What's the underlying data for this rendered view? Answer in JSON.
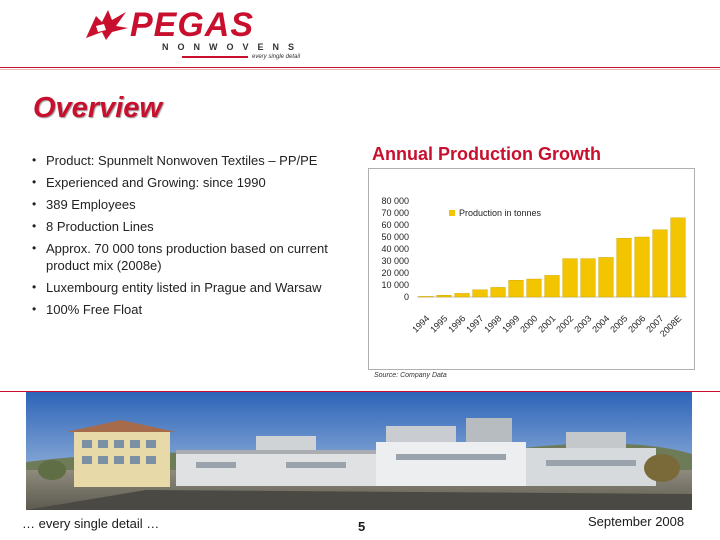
{
  "logo": {
    "name": "PEGAS",
    "subtitle": "NONWOVENS",
    "tagline": "every single detail",
    "icon": "pegasus-logo-icon"
  },
  "slide": {
    "title": "Overview",
    "bullets": [
      "Product: Spunmelt Nonwoven Textiles – PP/PE",
      "Experienced and Growing: since 1990",
      "389 Employees",
      "8 Production Lines",
      "Approx. 70 000 tons production based on current product mix (2008e)",
      "Luxembourg entity listed in Prague and Warsaw",
      "100% Free Float"
    ],
    "source": "Source: Company Data"
  },
  "footer": {
    "tagline": "… every single detail …",
    "page": "5",
    "date": "September 2008"
  },
  "colors": {
    "brand_red": "#c8102e",
    "bar_yellow": "#f2c500"
  },
  "chart_data": {
    "type": "bar",
    "title": "Annual Production Growth",
    "categories": [
      "1994",
      "1995",
      "1996",
      "1997",
      "1998",
      "1999",
      "2000",
      "2001",
      "2002",
      "2003",
      "2004",
      "2005",
      "2006",
      "2007",
      "2008E"
    ],
    "series": [
      {
        "name": "Production in tonnes",
        "values": [
          500,
          1500,
          3000,
          6000,
          8000,
          14000,
          15000,
          18000,
          32000,
          32000,
          33000,
          49000,
          50000,
          56000,
          66000
        ]
      }
    ],
    "yticks": [
      "80 000",
      "70 000",
      "60 000",
      "50 000",
      "40 000",
      "30 000",
      "20 000",
      "10 000",
      "0"
    ],
    "ylim": [
      0,
      80000
    ],
    "legend_position": "top-center",
    "grid": false
  }
}
